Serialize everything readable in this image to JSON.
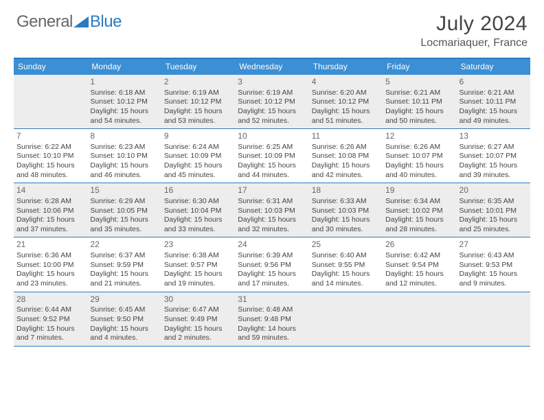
{
  "logo": {
    "text_general": "General",
    "text_blue": "Blue",
    "triangle_color": "#2b7bbf"
  },
  "title": "July 2024",
  "location": "Locmariaquer, France",
  "colors": {
    "header_bar": "#3b8fd4",
    "border": "#2b7bbf",
    "shaded_bg": "#ededed",
    "text": "#444444"
  },
  "weekdays": [
    "Sunday",
    "Monday",
    "Tuesday",
    "Wednesday",
    "Thursday",
    "Friday",
    "Saturday"
  ],
  "weeks": [
    [
      {
        "blank": true
      },
      {
        "num": "1",
        "sunrise": "Sunrise: 6:18 AM",
        "sunset": "Sunset: 10:12 PM",
        "daylight": "Daylight: 15 hours and 54 minutes."
      },
      {
        "num": "2",
        "sunrise": "Sunrise: 6:19 AM",
        "sunset": "Sunset: 10:12 PM",
        "daylight": "Daylight: 15 hours and 53 minutes."
      },
      {
        "num": "3",
        "sunrise": "Sunrise: 6:19 AM",
        "sunset": "Sunset: 10:12 PM",
        "daylight": "Daylight: 15 hours and 52 minutes."
      },
      {
        "num": "4",
        "sunrise": "Sunrise: 6:20 AM",
        "sunset": "Sunset: 10:12 PM",
        "daylight": "Daylight: 15 hours and 51 minutes."
      },
      {
        "num": "5",
        "sunrise": "Sunrise: 6:21 AM",
        "sunset": "Sunset: 10:11 PM",
        "daylight": "Daylight: 15 hours and 50 minutes."
      },
      {
        "num": "6",
        "sunrise": "Sunrise: 6:21 AM",
        "sunset": "Sunset: 10:11 PM",
        "daylight": "Daylight: 15 hours and 49 minutes."
      }
    ],
    [
      {
        "num": "7",
        "sunrise": "Sunrise: 6:22 AM",
        "sunset": "Sunset: 10:10 PM",
        "daylight": "Daylight: 15 hours and 48 minutes."
      },
      {
        "num": "8",
        "sunrise": "Sunrise: 6:23 AM",
        "sunset": "Sunset: 10:10 PM",
        "daylight": "Daylight: 15 hours and 46 minutes."
      },
      {
        "num": "9",
        "sunrise": "Sunrise: 6:24 AM",
        "sunset": "Sunset: 10:09 PM",
        "daylight": "Daylight: 15 hours and 45 minutes."
      },
      {
        "num": "10",
        "sunrise": "Sunrise: 6:25 AM",
        "sunset": "Sunset: 10:09 PM",
        "daylight": "Daylight: 15 hours and 44 minutes."
      },
      {
        "num": "11",
        "sunrise": "Sunrise: 6:26 AM",
        "sunset": "Sunset: 10:08 PM",
        "daylight": "Daylight: 15 hours and 42 minutes."
      },
      {
        "num": "12",
        "sunrise": "Sunrise: 6:26 AM",
        "sunset": "Sunset: 10:07 PM",
        "daylight": "Daylight: 15 hours and 40 minutes."
      },
      {
        "num": "13",
        "sunrise": "Sunrise: 6:27 AM",
        "sunset": "Sunset: 10:07 PM",
        "daylight": "Daylight: 15 hours and 39 minutes."
      }
    ],
    [
      {
        "num": "14",
        "sunrise": "Sunrise: 6:28 AM",
        "sunset": "Sunset: 10:06 PM",
        "daylight": "Daylight: 15 hours and 37 minutes."
      },
      {
        "num": "15",
        "sunrise": "Sunrise: 6:29 AM",
        "sunset": "Sunset: 10:05 PM",
        "daylight": "Daylight: 15 hours and 35 minutes."
      },
      {
        "num": "16",
        "sunrise": "Sunrise: 6:30 AM",
        "sunset": "Sunset: 10:04 PM",
        "daylight": "Daylight: 15 hours and 33 minutes."
      },
      {
        "num": "17",
        "sunrise": "Sunrise: 6:31 AM",
        "sunset": "Sunset: 10:03 PM",
        "daylight": "Daylight: 15 hours and 32 minutes."
      },
      {
        "num": "18",
        "sunrise": "Sunrise: 6:33 AM",
        "sunset": "Sunset: 10:03 PM",
        "daylight": "Daylight: 15 hours and 30 minutes."
      },
      {
        "num": "19",
        "sunrise": "Sunrise: 6:34 AM",
        "sunset": "Sunset: 10:02 PM",
        "daylight": "Daylight: 15 hours and 28 minutes."
      },
      {
        "num": "20",
        "sunrise": "Sunrise: 6:35 AM",
        "sunset": "Sunset: 10:01 PM",
        "daylight": "Daylight: 15 hours and 25 minutes."
      }
    ],
    [
      {
        "num": "21",
        "sunrise": "Sunrise: 6:36 AM",
        "sunset": "Sunset: 10:00 PM",
        "daylight": "Daylight: 15 hours and 23 minutes."
      },
      {
        "num": "22",
        "sunrise": "Sunrise: 6:37 AM",
        "sunset": "Sunset: 9:59 PM",
        "daylight": "Daylight: 15 hours and 21 minutes."
      },
      {
        "num": "23",
        "sunrise": "Sunrise: 6:38 AM",
        "sunset": "Sunset: 9:57 PM",
        "daylight": "Daylight: 15 hours and 19 minutes."
      },
      {
        "num": "24",
        "sunrise": "Sunrise: 6:39 AM",
        "sunset": "Sunset: 9:56 PM",
        "daylight": "Daylight: 15 hours and 17 minutes."
      },
      {
        "num": "25",
        "sunrise": "Sunrise: 6:40 AM",
        "sunset": "Sunset: 9:55 PM",
        "daylight": "Daylight: 15 hours and 14 minutes."
      },
      {
        "num": "26",
        "sunrise": "Sunrise: 6:42 AM",
        "sunset": "Sunset: 9:54 PM",
        "daylight": "Daylight: 15 hours and 12 minutes."
      },
      {
        "num": "27",
        "sunrise": "Sunrise: 6:43 AM",
        "sunset": "Sunset: 9:53 PM",
        "daylight": "Daylight: 15 hours and 9 minutes."
      }
    ],
    [
      {
        "num": "28",
        "sunrise": "Sunrise: 6:44 AM",
        "sunset": "Sunset: 9:52 PM",
        "daylight": "Daylight: 15 hours and 7 minutes."
      },
      {
        "num": "29",
        "sunrise": "Sunrise: 6:45 AM",
        "sunset": "Sunset: 9:50 PM",
        "daylight": "Daylight: 15 hours and 4 minutes."
      },
      {
        "num": "30",
        "sunrise": "Sunrise: 6:47 AM",
        "sunset": "Sunset: 9:49 PM",
        "daylight": "Daylight: 15 hours and 2 minutes."
      },
      {
        "num": "31",
        "sunrise": "Sunrise: 6:48 AM",
        "sunset": "Sunset: 9:48 PM",
        "daylight": "Daylight: 14 hours and 59 minutes."
      },
      {
        "blank": true
      },
      {
        "blank": true
      },
      {
        "blank": true
      }
    ]
  ]
}
